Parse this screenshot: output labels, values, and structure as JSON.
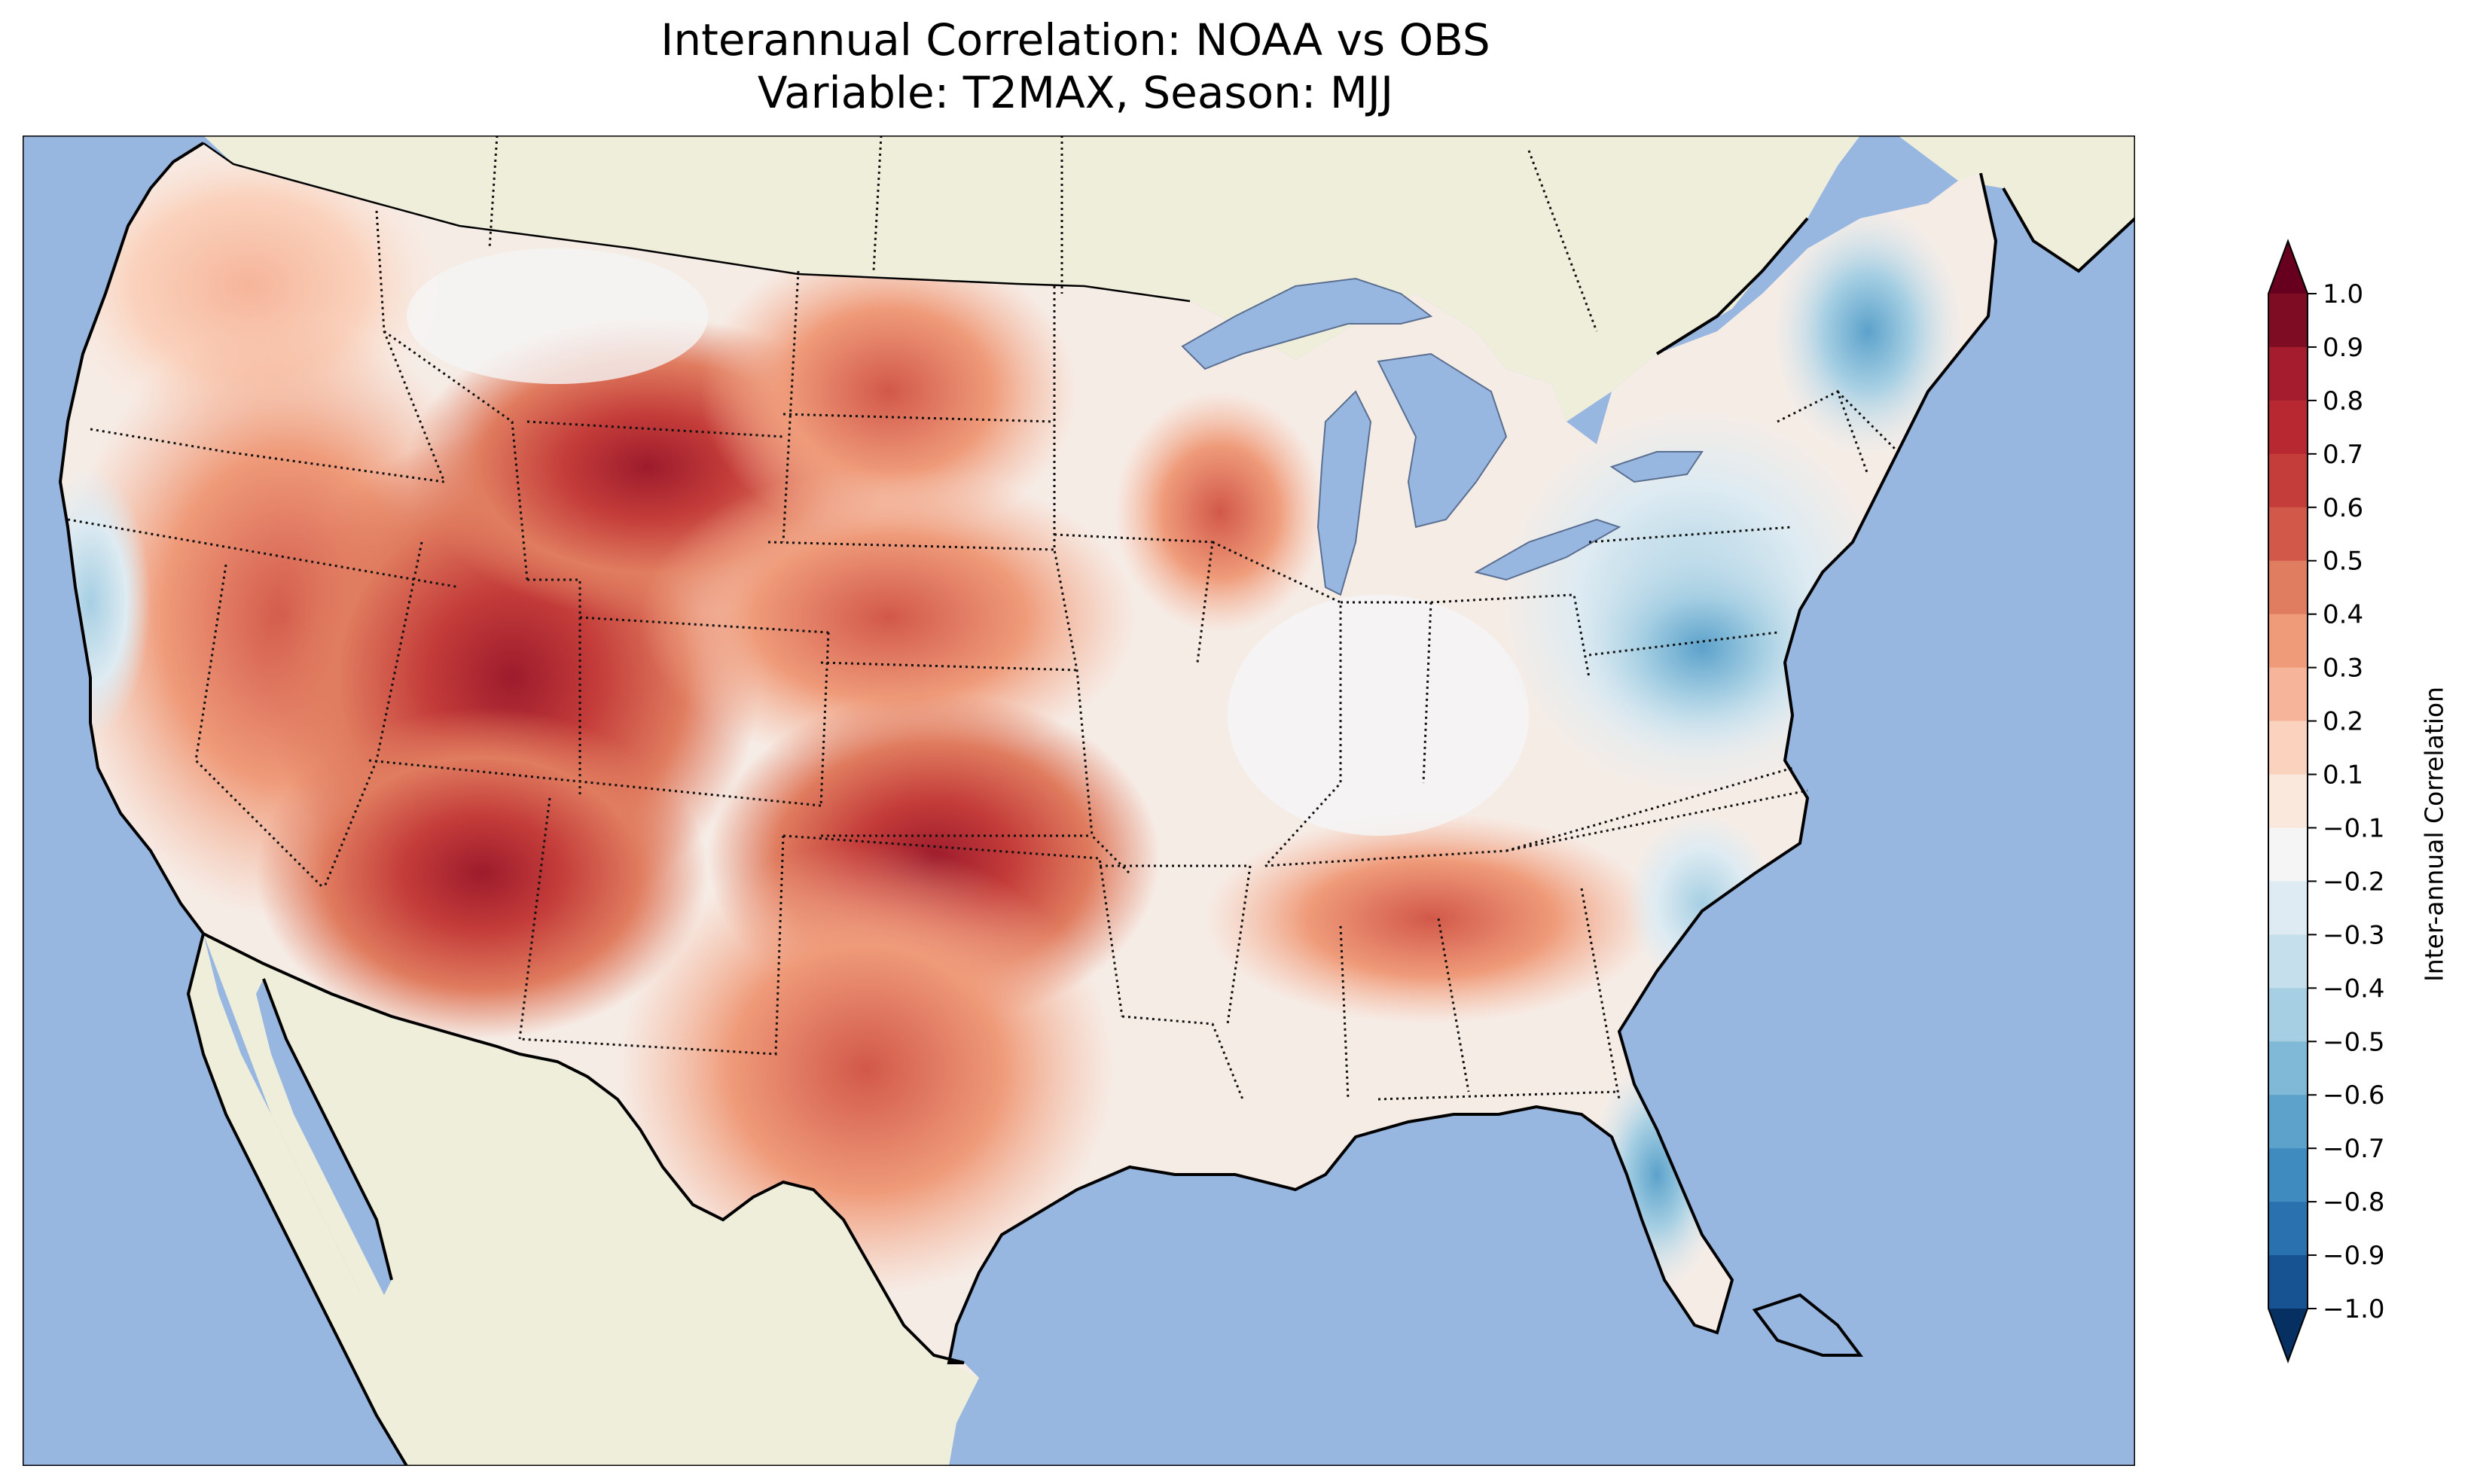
{
  "title_line1": "Interannual Correlation: NOAA vs OBS",
  "title_line2": "Variable: T2MAX, Season: MJJ",
  "colorbar": {
    "label": "Inter-annual Correlation",
    "ticks": [
      "1.0",
      "0.9",
      "0.8",
      "0.7",
      "0.6",
      "0.5",
      "0.4",
      "0.3",
      "0.2",
      "0.1",
      "−0.1",
      "−0.2",
      "−0.3",
      "−0.4",
      "−0.5",
      "−0.6",
      "−0.7",
      "−0.8",
      "−0.9",
      "−1.0"
    ],
    "colors": [
      "#67001f",
      "#7e0d24",
      "#a41c2d",
      "#b72830",
      "#c43d3a",
      "#d25849",
      "#e07c5f",
      "#ef9b7a",
      "#f6b59a",
      "#fad2bd",
      "#fbe8dd",
      "#f5f5f5",
      "#deebf2",
      "#c6dfed",
      "#a6cfe3",
      "#80b8d7",
      "#5ca2cb",
      "#3f8bc0",
      "#2a71b0",
      "#175393",
      "#0b3b70",
      "#053061"
    ]
  },
  "map": {
    "ocean_color": "#97b6e0",
    "land_color": "#efeedb",
    "lake_color": "#97b6e0"
  }
}
